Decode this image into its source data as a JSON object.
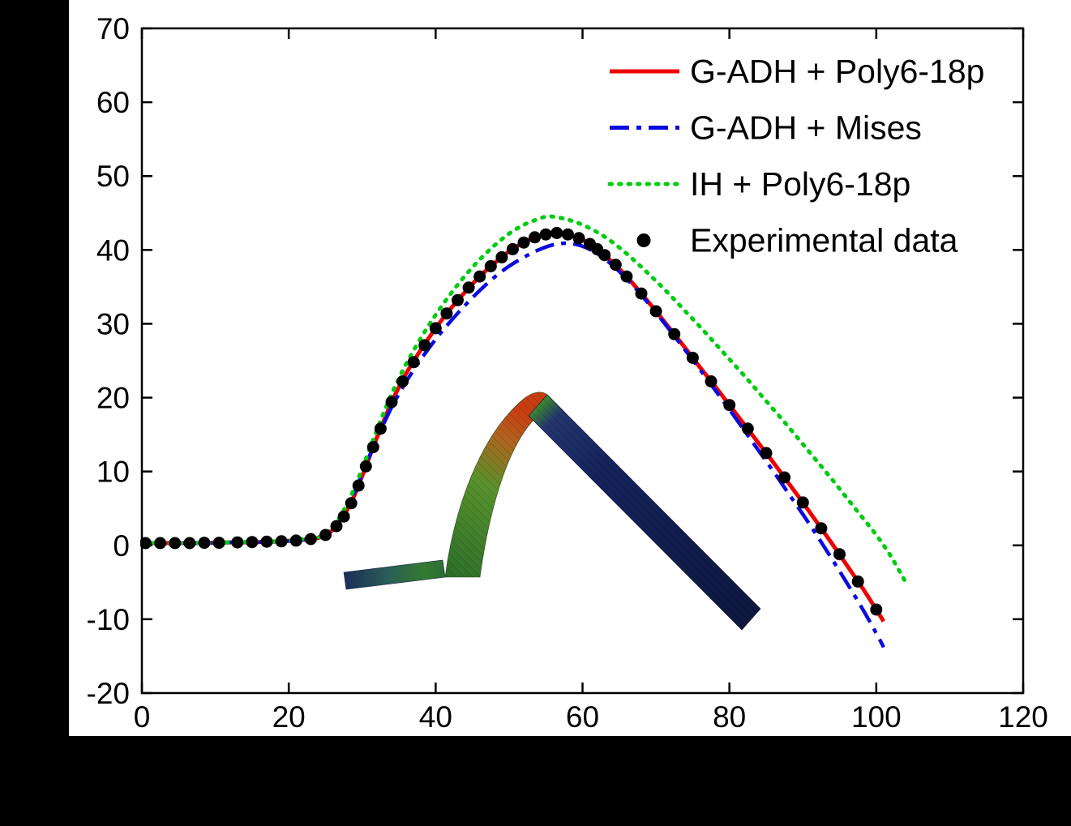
{
  "figure": {
    "background_color": "#000000",
    "panel_color": "#ffffff",
    "axis_color": "#000000"
  },
  "chart_data": {
    "type": "line",
    "title": "",
    "xlabel": "",
    "ylabel": "",
    "xlim": [
      0,
      120
    ],
    "ylim": [
      -20,
      70
    ],
    "x_ticks": [
      0,
      20,
      40,
      60,
      80,
      100,
      120
    ],
    "y_ticks": [
      -20,
      -10,
      0,
      10,
      20,
      30,
      40,
      50,
      60,
      70
    ],
    "grid": false,
    "legend_position": "top-right",
    "series": [
      {
        "name": "G-ADH + Poly6-18p",
        "color": "#ee0000",
        "style": "solid",
        "points": [
          [
            0,
            0.3
          ],
          [
            2,
            0.3
          ],
          [
            4,
            0.3
          ],
          [
            6,
            0.3
          ],
          [
            8,
            0.3
          ],
          [
            10,
            0.35
          ],
          [
            12,
            0.4
          ],
          [
            14,
            0.4
          ],
          [
            16,
            0.45
          ],
          [
            18,
            0.5
          ],
          [
            20,
            0.6
          ],
          [
            22,
            0.75
          ],
          [
            24,
            1.0
          ],
          [
            25,
            1.4
          ],
          [
            26,
            2.1
          ],
          [
            27,
            3.3
          ],
          [
            28,
            4.9
          ],
          [
            29,
            6.9
          ],
          [
            30,
            9.4
          ],
          [
            31,
            12
          ],
          [
            32,
            14.6
          ],
          [
            33,
            17
          ],
          [
            34,
            19.4
          ],
          [
            35,
            21.4
          ],
          [
            36,
            23.3
          ],
          [
            38,
            26.5
          ],
          [
            40,
            29.4
          ],
          [
            42,
            32
          ],
          [
            44,
            34.3
          ],
          [
            46,
            36.4
          ],
          [
            48,
            38.2
          ],
          [
            50,
            39.8
          ],
          [
            52,
            41
          ],
          [
            54,
            41.9
          ],
          [
            56,
            42.3
          ],
          [
            58,
            42.1
          ],
          [
            60,
            41.4
          ],
          [
            62,
            40.1
          ],
          [
            64,
            38.4
          ],
          [
            66,
            36.4
          ],
          [
            68,
            34.1
          ],
          [
            70,
            31.7
          ],
          [
            72,
            29.2
          ],
          [
            74,
            26.7
          ],
          [
            76,
            24.1
          ],
          [
            78,
            21.6
          ],
          [
            80,
            19
          ],
          [
            82,
            16.4
          ],
          [
            84,
            13.8
          ],
          [
            86,
            11.2
          ],
          [
            88,
            8.5
          ],
          [
            90,
            5.8
          ],
          [
            92,
            3
          ],
          [
            94,
            0.2
          ],
          [
            96,
            -2.7
          ],
          [
            98,
            -5.6
          ],
          [
            100,
            -8.7
          ],
          [
            101,
            -10.3
          ]
        ]
      },
      {
        "name": "G-ADH + Mises",
        "color": "#0a0ae0",
        "style": "dashdot",
        "points": [
          [
            0,
            0.3
          ],
          [
            2,
            0.3
          ],
          [
            4,
            0.3
          ],
          [
            6,
            0.3
          ],
          [
            8,
            0.3
          ],
          [
            10,
            0.35
          ],
          [
            12,
            0.4
          ],
          [
            14,
            0.4
          ],
          [
            16,
            0.45
          ],
          [
            18,
            0.5
          ],
          [
            20,
            0.6
          ],
          [
            22,
            0.75
          ],
          [
            24,
            1.0
          ],
          [
            25,
            1.5
          ],
          [
            26,
            2.3
          ],
          [
            27,
            3.6
          ],
          [
            28,
            5.3
          ],
          [
            29,
            7.3
          ],
          [
            30,
            9.7
          ],
          [
            31,
            12.1
          ],
          [
            32,
            14.4
          ],
          [
            33,
            16.6
          ],
          [
            34,
            18.7
          ],
          [
            35,
            20.5
          ],
          [
            36,
            22.2
          ],
          [
            38,
            25.2
          ],
          [
            40,
            27.9
          ],
          [
            42,
            30.3
          ],
          [
            44,
            32.5
          ],
          [
            46,
            34.5
          ],
          [
            48,
            36.3
          ],
          [
            50,
            37.8
          ],
          [
            52,
            39
          ],
          [
            54,
            40
          ],
          [
            56,
            40.7
          ],
          [
            58,
            40.9
          ],
          [
            60,
            40.5
          ],
          [
            62,
            39.5
          ],
          [
            64,
            38
          ],
          [
            66,
            36.1
          ],
          [
            68,
            33.9
          ],
          [
            70,
            31.5
          ],
          [
            72,
            29
          ],
          [
            74,
            26.4
          ],
          [
            76,
            23.8
          ],
          [
            78,
            21.1
          ],
          [
            80,
            18.4
          ],
          [
            82,
            15.6
          ],
          [
            84,
            12.8
          ],
          [
            86,
            10
          ],
          [
            88,
            7.1
          ],
          [
            90,
            4.2
          ],
          [
            92,
            1.2
          ],
          [
            94,
            -1.9
          ],
          [
            96,
            -5.1
          ],
          [
            98,
            -8.4
          ],
          [
            100,
            -11.9
          ],
          [
            101,
            -13.8
          ]
        ]
      },
      {
        "name": "IH + Poly6-18p",
        "color": "#00cc11",
        "style": "dotted",
        "points": [
          [
            0,
            0.3
          ],
          [
            2,
            0.3
          ],
          [
            4,
            0.3
          ],
          [
            6,
            0.3
          ],
          [
            8,
            0.3
          ],
          [
            10,
            0.35
          ],
          [
            12,
            0.4
          ],
          [
            14,
            0.45
          ],
          [
            16,
            0.5
          ],
          [
            18,
            0.55
          ],
          [
            20,
            0.65
          ],
          [
            22,
            0.85
          ],
          [
            24,
            1.1
          ],
          [
            25,
            1.6
          ],
          [
            26,
            2.5
          ],
          [
            27,
            3.9
          ],
          [
            28,
            5.7
          ],
          [
            29,
            7.9
          ],
          [
            30,
            10.4
          ],
          [
            31,
            13
          ],
          [
            32,
            15.6
          ],
          [
            33,
            18.1
          ],
          [
            34,
            20.5
          ],
          [
            35,
            22.6
          ],
          [
            36,
            24.6
          ],
          [
            38,
            28.1
          ],
          [
            40,
            31.2
          ],
          [
            42,
            34
          ],
          [
            44,
            36.5
          ],
          [
            46,
            38.7
          ],
          [
            48,
            40.6
          ],
          [
            50,
            42.2
          ],
          [
            52,
            43.4
          ],
          [
            54,
            44.2
          ],
          [
            55,
            44.5
          ],
          [
            56,
            44.5
          ],
          [
            58,
            44.1
          ],
          [
            60,
            43.4
          ],
          [
            62,
            42.4
          ],
          [
            64,
            41.1
          ],
          [
            66,
            39.5
          ],
          [
            68,
            37.7
          ],
          [
            70,
            35.8
          ],
          [
            72,
            33.8
          ],
          [
            74,
            31.7
          ],
          [
            76,
            29.6
          ],
          [
            78,
            27.4
          ],
          [
            80,
            25.2
          ],
          [
            82,
            23
          ],
          [
            84,
            20.7
          ],
          [
            86,
            18.4
          ],
          [
            88,
            16.1
          ],
          [
            90,
            13.7
          ],
          [
            92,
            11.3
          ],
          [
            94,
            8.9
          ],
          [
            96,
            6.4
          ],
          [
            98,
            3.9
          ],
          [
            100,
            1.4
          ],
          [
            102,
            -1.5
          ],
          [
            104,
            -5
          ]
        ]
      },
      {
        "name": "Experimental data",
        "color": "#000000",
        "style": "scatter",
        "marker": "circle",
        "points": [
          [
            0.5,
            0.3
          ],
          [
            2.5,
            0.3
          ],
          [
            4.5,
            0.3
          ],
          [
            6.5,
            0.3
          ],
          [
            8.5,
            0.35
          ],
          [
            10.5,
            0.35
          ],
          [
            13,
            0.4
          ],
          [
            15,
            0.45
          ],
          [
            17,
            0.5
          ],
          [
            19,
            0.55
          ],
          [
            21,
            0.65
          ],
          [
            23,
            0.85
          ],
          [
            25,
            1.4
          ],
          [
            26.5,
            2.6
          ],
          [
            27.5,
            3.9
          ],
          [
            28.5,
            5.7
          ],
          [
            29.5,
            8.1
          ],
          [
            30.5,
            10.7
          ],
          [
            31.5,
            13.3
          ],
          [
            32.5,
            15.8
          ],
          [
            34,
            19.4
          ],
          [
            35.5,
            22.2
          ],
          [
            37,
            24.8
          ],
          [
            38.5,
            27.1
          ],
          [
            40,
            29.4
          ],
          [
            41.5,
            31.4
          ],
          [
            43,
            33.2
          ],
          [
            44.5,
            34.9
          ],
          [
            46,
            36.4
          ],
          [
            47.5,
            37.8
          ],
          [
            49,
            39
          ],
          [
            50.5,
            40.1
          ],
          [
            52,
            41
          ],
          [
            53.5,
            41.7
          ],
          [
            55,
            42.1
          ],
          [
            56.5,
            42.3
          ],
          [
            58,
            42.1
          ],
          [
            59.5,
            41.6
          ],
          [
            61,
            40.8
          ],
          [
            62,
            40.1
          ],
          [
            63,
            39.3
          ],
          [
            64.5,
            38
          ],
          [
            66,
            36.4
          ],
          [
            68,
            34.1
          ],
          [
            70,
            31.7
          ],
          [
            72.5,
            28.6
          ],
          [
            75,
            25.4
          ],
          [
            77.5,
            22.2
          ],
          [
            80,
            19
          ],
          [
            82.5,
            15.8
          ],
          [
            85,
            12.5
          ],
          [
            87.5,
            9.2
          ],
          [
            90,
            5.8
          ],
          [
            92.5,
            2.3
          ],
          [
            95,
            -1.2
          ],
          [
            97.5,
            -4.9
          ],
          [
            100,
            -8.7
          ]
        ]
      }
    ]
  },
  "inset": {
    "description": "deformed-sheet springback simulation mesh"
  }
}
